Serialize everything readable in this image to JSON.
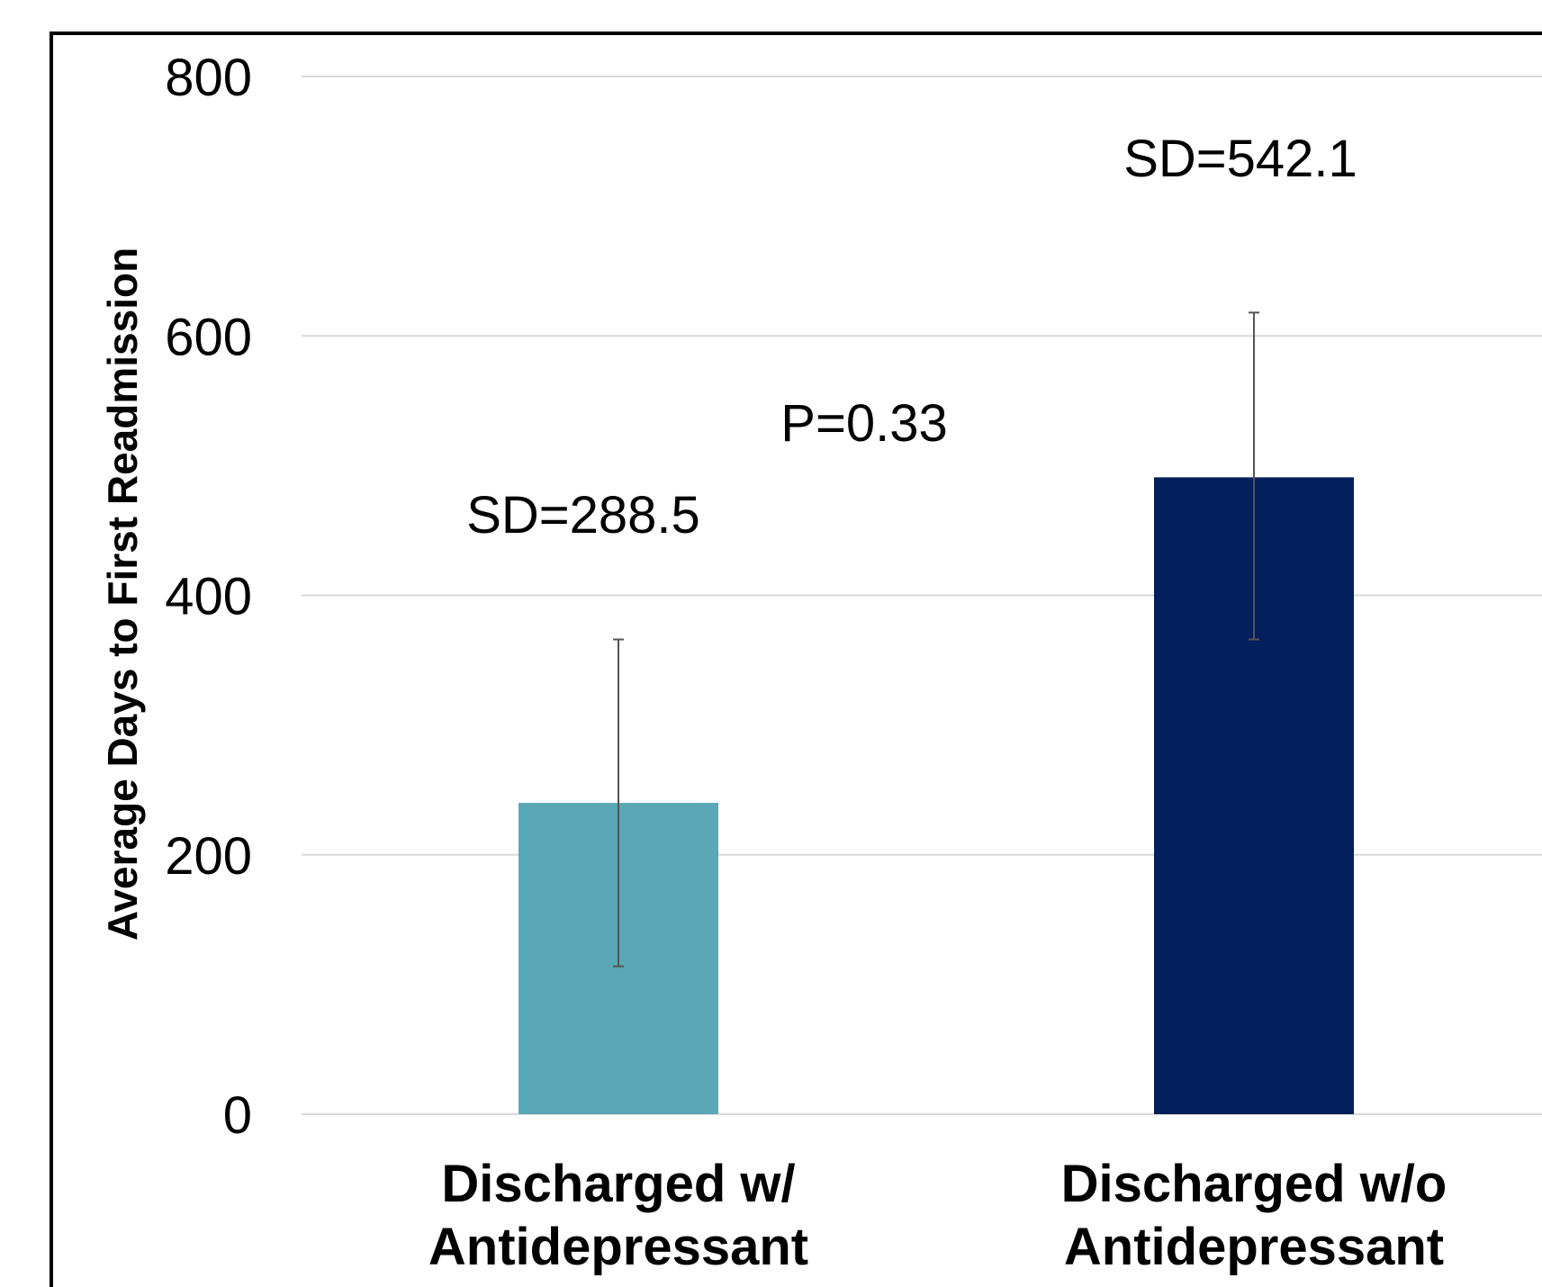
{
  "chart_data": {
    "type": "bar",
    "title": "",
    "xlabel": "",
    "ylabel": "Average Days to First Readmission",
    "ylim": [
      0,
      800
    ],
    "yticks": [
      0,
      200,
      400,
      600,
      800
    ],
    "grid": true,
    "categories": [
      [
        "Discharged w/",
        "Antidepressant"
      ],
      [
        "Discharged w/o",
        "Antidepressant"
      ]
    ],
    "values": [
      240,
      491
    ],
    "error_bars": [
      {
        "low": 114,
        "high": 366
      },
      {
        "low": 366,
        "high": 618
      }
    ],
    "colors": [
      "#5aa8b5",
      "#03205c"
    ],
    "annotations": {
      "sd_left": "SD=288.5",
      "sd_right": "SD=542.1",
      "p_value": "P=0.33"
    }
  }
}
